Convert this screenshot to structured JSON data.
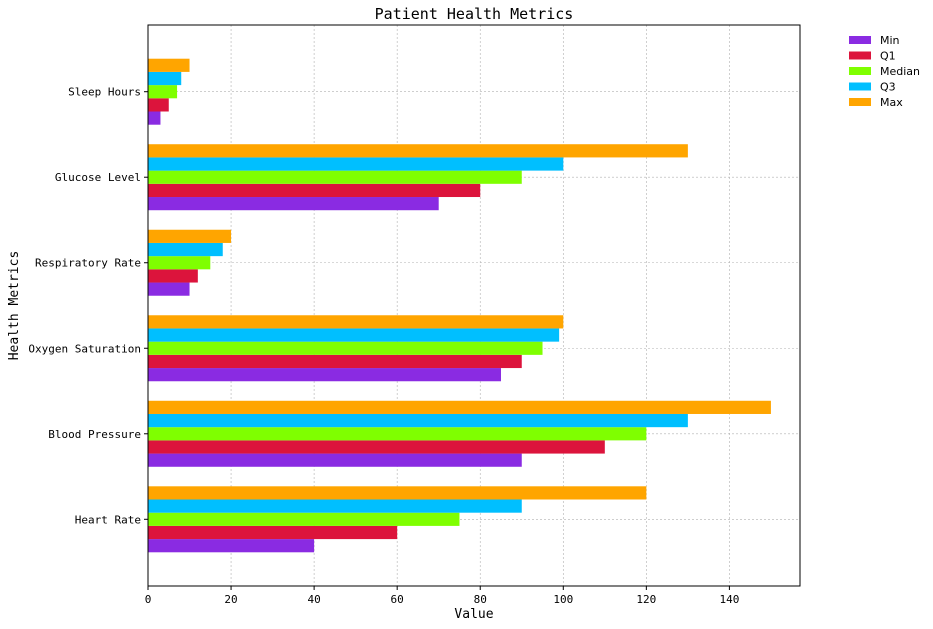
{
  "chart_data": {
    "type": "bar",
    "orientation": "horizontal",
    "title": "Patient Health Metrics",
    "xlabel": "Value",
    "ylabel": "Health Metrics",
    "xlim": [
      0,
      157
    ],
    "xticks": [
      0,
      20,
      40,
      60,
      80,
      100,
      120,
      140
    ],
    "grid": true,
    "legend_position": "outside-top-right",
    "categories": [
      "Heart Rate",
      "Blood Pressure",
      "Oxygen Saturation",
      "Respiratory Rate",
      "Glucose Level",
      "Sleep Hours"
    ],
    "series": [
      {
        "name": "Min",
        "color": "#8a2be2",
        "values": [
          40,
          90,
          85,
          10,
          70,
          3
        ]
      },
      {
        "name": "Q1",
        "color": "#dc143c",
        "values": [
          60,
          110,
          90,
          12,
          80,
          5
        ]
      },
      {
        "name": "Median",
        "color": "#7fff00",
        "values": [
          75,
          120,
          95,
          15,
          90,
          7
        ]
      },
      {
        "name": "Q3",
        "color": "#00bfff",
        "values": [
          90,
          130,
          99,
          18,
          100,
          8
        ]
      },
      {
        "name": "Max",
        "color": "#ffa500",
        "values": [
          120,
          150,
          100,
          20,
          130,
          10
        ]
      }
    ]
  }
}
